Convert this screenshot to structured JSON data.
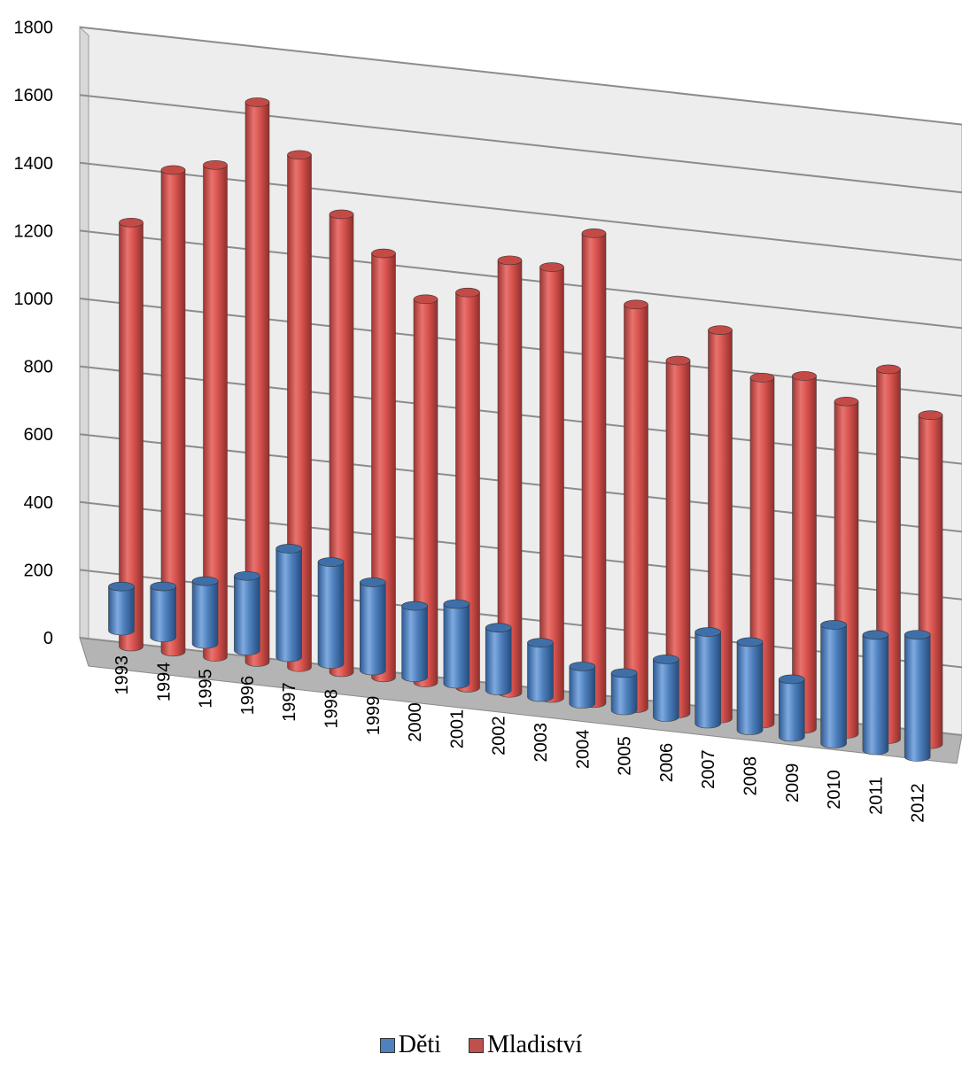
{
  "chart_data": {
    "type": "bar",
    "categories": [
      "1993",
      "1994",
      "1995",
      "1996",
      "1997",
      "1998",
      "1999",
      "2000",
      "2001",
      "2002",
      "2003",
      "2004",
      "2005",
      "2006",
      "2007",
      "2008",
      "2009",
      "2010",
      "2011",
      "2012"
    ],
    "series": [
      {
        "name": "Děti",
        "color": "#4f81bd",
        "values": [
          130,
          150,
          185,
          220,
          320,
          300,
          260,
          210,
          235,
          185,
          160,
          110,
          110,
          170,
          270,
          260,
          170,
          350,
          340,
          360
        ]
      },
      {
        "name": "Mladiství",
        "color": "#c0504d",
        "values": [
          1250,
          1420,
          1450,
          1650,
          1510,
          1350,
          1250,
          1130,
          1165,
          1275,
          1270,
          1385,
          1190,
          1040,
          1145,
          1020,
          1040,
          980,
          1090,
          970
        ]
      }
    ],
    "y_ticks": [
      "0",
      "200",
      "400",
      "600",
      "800",
      "1000",
      "1200",
      "1400",
      "1600",
      "1800"
    ],
    "ylim": [
      0,
      1800
    ],
    "xlabel": "",
    "ylabel": "",
    "grid": true,
    "legend": "bottom"
  }
}
